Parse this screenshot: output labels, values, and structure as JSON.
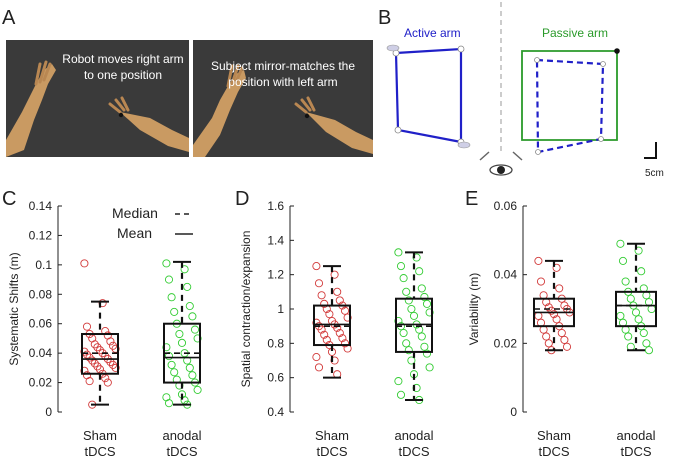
{
  "figure": {
    "panel_a": {
      "letter": "A",
      "caption_left_line1": "Robot moves right arm",
      "caption_left_line2": "to one position",
      "caption_right_line1": "Subject mirror-matches the",
      "caption_right_line2": "position with left arm"
    },
    "panel_b": {
      "letter": "B",
      "active_label": "Active arm",
      "passive_label": "Passive arm",
      "scale_label": "5cm",
      "active_color": "#2020c8",
      "passive_color": "#2a9a2a"
    },
    "legend": {
      "median": "Median",
      "mean": "Mean"
    },
    "point_colors": {
      "sham": "#d23a3a",
      "anodal": "#33cc33"
    }
  },
  "chart_data": [
    {
      "type": "box",
      "panel": "C",
      "ylabel": "Systematic Shifts (m)",
      "categories": [
        "Sham\ntDCS",
        "anodal\ntDCS"
      ],
      "ylim": [
        0,
        0.14
      ],
      "yticks": [
        "0",
        "0.02",
        "0.04",
        "0.06",
        "0.08",
        "0.1",
        "0.12",
        "0.14"
      ],
      "series": [
        {
          "name": "Sham tDCS",
          "whisker_low": 0.005,
          "q1": 0.026,
          "median": 0.04,
          "mean": 0.036,
          "q3": 0.053,
          "whisker_high": 0.075,
          "points": [
            0.101,
            0.074,
            0.058,
            0.055,
            0.053,
            0.052,
            0.05,
            0.048,
            0.046,
            0.045,
            0.044,
            0.043,
            0.042,
            0.041,
            0.04,
            0.039,
            0.038,
            0.037,
            0.036,
            0.035,
            0.034,
            0.033,
            0.032,
            0.031,
            0.03,
            0.029,
            0.028,
            0.026,
            0.025,
            0.023,
            0.021,
            0.02,
            0.005
          ]
        },
        {
          "name": "anodal tDCS",
          "whisker_low": 0.005,
          "q1": 0.02,
          "median": 0.04,
          "mean": 0.037,
          "q3": 0.06,
          "whisker_high": 0.102,
          "points": [
            0.101,
            0.097,
            0.09,
            0.085,
            0.078,
            0.072,
            0.068,
            0.065,
            0.06,
            0.056,
            0.053,
            0.05,
            0.047,
            0.044,
            0.04,
            0.038,
            0.035,
            0.032,
            0.03,
            0.027,
            0.025,
            0.022,
            0.02,
            0.018,
            0.015,
            0.012,
            0.01,
            0.008,
            0.006,
            0.005
          ]
        }
      ]
    },
    {
      "type": "box",
      "panel": "D",
      "ylabel": "Spatial contraction/expansion",
      "categories": [
        "Sham\ntDCS",
        "anodal\ntDCS"
      ],
      "ylim": [
        0.4,
        1.6
      ],
      "yticks": [
        "0.4",
        "0.6",
        "0.8",
        "1",
        "1.2",
        "1.4",
        "1.6"
      ],
      "series": [
        {
          "name": "Sham tDCS",
          "whisker_low": 0.6,
          "q1": 0.79,
          "median": 0.9,
          "mean": 0.91,
          "q3": 1.02,
          "whisker_high": 1.25,
          "points": [
            1.25,
            1.2,
            1.15,
            1.1,
            1.08,
            1.05,
            1.03,
            1.02,
            1.0,
            0.99,
            0.97,
            0.95,
            0.93,
            0.92,
            0.91,
            0.9,
            0.89,
            0.88,
            0.86,
            0.85,
            0.83,
            0.82,
            0.8,
            0.79,
            0.77,
            0.75,
            0.72,
            0.7,
            0.66,
            0.62
          ]
        },
        {
          "name": "anodal tDCS",
          "whisker_low": 0.47,
          "q1": 0.75,
          "median": 0.9,
          "mean": 0.91,
          "q3": 1.06,
          "whisker_high": 1.33,
          "points": [
            1.33,
            1.3,
            1.25,
            1.22,
            1.18,
            1.12,
            1.1,
            1.07,
            1.05,
            1.03,
            1.0,
            0.98,
            0.96,
            0.93,
            0.91,
            0.9,
            0.88,
            0.86,
            0.84,
            0.8,
            0.78,
            0.76,
            0.74,
            0.7,
            0.66,
            0.62,
            0.58,
            0.54,
            0.5,
            0.47
          ]
        }
      ]
    },
    {
      "type": "box",
      "panel": "E",
      "ylabel": "Variability (m)",
      "categories": [
        "Sham\ntDCS",
        "anodal\ntDCS"
      ],
      "ylim": [
        0,
        0.06
      ],
      "yticks": [
        "0",
        "0.02",
        "0.04",
        "0.06"
      ],
      "series": [
        {
          "name": "Sham tDCS",
          "whisker_low": 0.018,
          "q1": 0.025,
          "median": 0.03,
          "mean": 0.029,
          "q3": 0.033,
          "whisker_high": 0.044,
          "points": [
            0.044,
            0.042,
            0.038,
            0.036,
            0.034,
            0.033,
            0.032,
            0.031,
            0.0305,
            0.03,
            0.0295,
            0.029,
            0.0285,
            0.028,
            0.027,
            0.026,
            0.025,
            0.024,
            0.023,
            0.022,
            0.021,
            0.02,
            0.019,
            0.018
          ]
        },
        {
          "name": "anodal tDCS",
          "whisker_low": 0.018,
          "q1": 0.025,
          "median": 0.031,
          "mean": 0.031,
          "q3": 0.035,
          "whisker_high": 0.049,
          "points": [
            0.049,
            0.047,
            0.044,
            0.041,
            0.038,
            0.036,
            0.035,
            0.034,
            0.033,
            0.032,
            0.031,
            0.03,
            0.029,
            0.028,
            0.027,
            0.026,
            0.025,
            0.024,
            0.023,
            0.022,
            0.02,
            0.019,
            0.018
          ]
        }
      ]
    }
  ]
}
